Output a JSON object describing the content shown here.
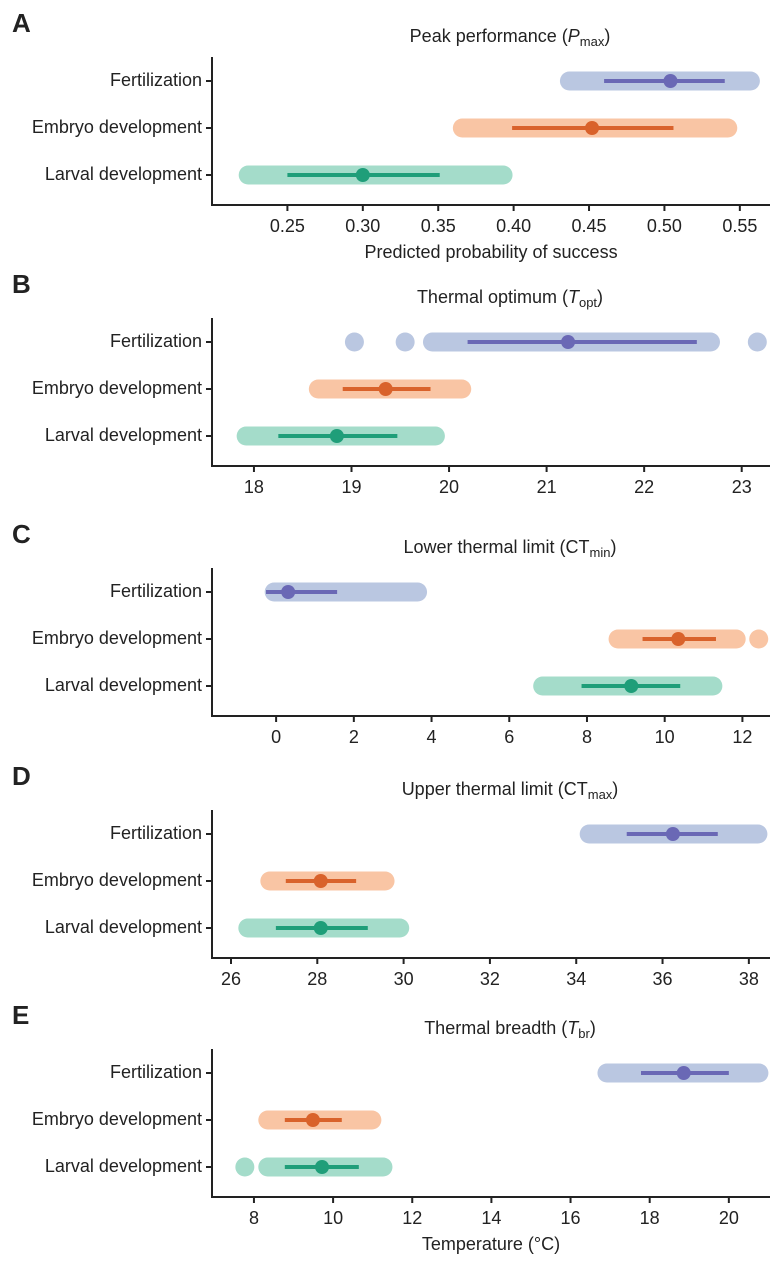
{
  "chart_data": [
    {
      "type": "forest",
      "label": "A",
      "title": {
        "text": "Peak performance (",
        "symbol": "P",
        "subscript": "max",
        "close": ")",
        "symbol_italic": true
      },
      "categories": [
        "Fertilization",
        "Embryo development",
        "Larval development"
      ],
      "estimate": [
        0.504,
        0.452,
        0.3
      ],
      "ci_low": [
        0.46,
        0.399,
        0.25
      ],
      "ci_high": [
        0.54,
        0.506,
        0.351
      ],
      "range_low": [
        0.437,
        0.366,
        0.224
      ],
      "range_high": [
        0.557,
        0.542,
        0.393
      ],
      "outliers": [
        [],
        [],
        []
      ],
      "colors": [
        "#6a68b5",
        "#d9622b",
        "#1f9e79"
      ],
      "light_colors": [
        "#bac7e1",
        "#f9c5a4",
        "#a4dcca"
      ],
      "xlim": [
        0.2,
        0.57
      ],
      "xticks": [
        0.25,
        {
          "value": 0.3,
          "label": "0.30"
        },
        0.35,
        {
          "value": 0.4,
          "label": "0.40"
        },
        0.45,
        {
          "value": 0.5,
          "label": "0.50"
        },
        0.55
      ],
      "xlabel": "Predicted probability of success"
    },
    {
      "type": "forest",
      "label": "B",
      "title": {
        "text": "Thermal optimum (",
        "symbol": "T",
        "subscript": "opt",
        "close": ")",
        "symbol_italic": true
      },
      "categories": [
        "Fertilization",
        "Embryo development",
        "Larval development"
      ],
      "estimate": [
        21.22,
        19.35,
        18.85
      ],
      "ci_low": [
        20.19,
        18.91,
        18.25
      ],
      "ci_high": [
        22.54,
        19.81,
        19.47
      ],
      "range_low": [
        19.83,
        18.66,
        17.92
      ],
      "range_high": [
        22.68,
        20.13,
        19.86
      ],
      "outliers": [
        [
          19.03,
          19.55,
          23.16
        ],
        [],
        []
      ],
      "colors": [
        "#6a68b5",
        "#d9622b",
        "#1f9e79"
      ],
      "light_colors": [
        "#bac7e1",
        "#f9c5a4",
        "#a4dcca"
      ],
      "xlim": [
        17.57,
        23.29
      ],
      "xticks": [
        18,
        19,
        20,
        21,
        22,
        23
      ]
    },
    {
      "type": "forest",
      "label": "C",
      "title": {
        "text": "Lower thermal limit (",
        "symbol": "CT",
        "subscript": "min",
        "close": ")",
        "symbol_italic": false
      },
      "categories": [
        "Fertilization",
        "Embryo development",
        "Larval development"
      ],
      "estimate": [
        0.31,
        10.35,
        9.14
      ],
      "ci_low": [
        -0.26,
        9.43,
        7.86
      ],
      "ci_high": [
        1.57,
        11.32,
        10.4
      ],
      "range_low": [
        -0.05,
        8.8,
        6.86
      ],
      "range_high": [
        3.64,
        11.84,
        11.24
      ],
      "outliers": [
        [],
        [
          12.42
        ],
        []
      ],
      "colors": [
        "#6a68b5",
        "#d9622b",
        "#1f9e79"
      ],
      "light_colors": [
        "#bac7e1",
        "#f9c5a4",
        "#a4dcca"
      ],
      "xlim": [
        -1.65,
        12.71
      ],
      "xticks": [
        0,
        2,
        4,
        6,
        8,
        10,
        12
      ]
    },
    {
      "type": "forest",
      "label": "D",
      "title": {
        "text": "Upper thermal limit (",
        "symbol": "CT",
        "subscript": "max",
        "close": ")",
        "symbol_italic": false
      },
      "categories": [
        "Fertilization",
        "Embryo development",
        "Larval development"
      ],
      "estimate": [
        36.24,
        28.08,
        28.08
      ],
      "ci_low": [
        35.17,
        27.27,
        27.04
      ],
      "ci_high": [
        37.28,
        28.9,
        29.17
      ],
      "range_low": [
        34.3,
        26.9,
        26.39
      ],
      "range_high": [
        38.21,
        29.57,
        29.91
      ],
      "outliers": [
        [],
        [],
        []
      ],
      "colors": [
        "#6a68b5",
        "#d9622b",
        "#1f9e79"
      ],
      "light_colors": [
        "#bac7e1",
        "#f9c5a4",
        "#a4dcca"
      ],
      "xlim": [
        25.56,
        38.49
      ],
      "xticks": [
        26,
        28,
        30,
        32,
        34,
        36,
        38
      ]
    },
    {
      "type": "forest",
      "label": "E",
      "title": {
        "text": "Thermal breadth (",
        "symbol": "T",
        "subscript": "br",
        "close": ")",
        "symbol_italic": true
      },
      "categories": [
        "Fertilization",
        "Embryo development",
        "Larval development"
      ],
      "estimate": [
        18.86,
        9.49,
        9.72
      ],
      "ci_low": [
        17.78,
        8.78,
        8.78
      ],
      "ci_high": [
        20.0,
        10.22,
        10.65
      ],
      "range_low": [
        16.92,
        8.35,
        8.35
      ],
      "range_high": [
        20.76,
        10.98,
        11.26
      ],
      "outliers": [
        [],
        [],
        [
          7.77
        ]
      ],
      "colors": [
        "#6a68b5",
        "#d9622b",
        "#1f9e79"
      ],
      "light_colors": [
        "#bac7e1",
        "#f9c5a4",
        "#a4dcca"
      ],
      "xlim": [
        6.94,
        21.04
      ],
      "xticks": [
        8,
        10,
        12,
        14,
        16,
        18,
        20
      ],
      "xlabel": "Temperature (°C)"
    }
  ]
}
